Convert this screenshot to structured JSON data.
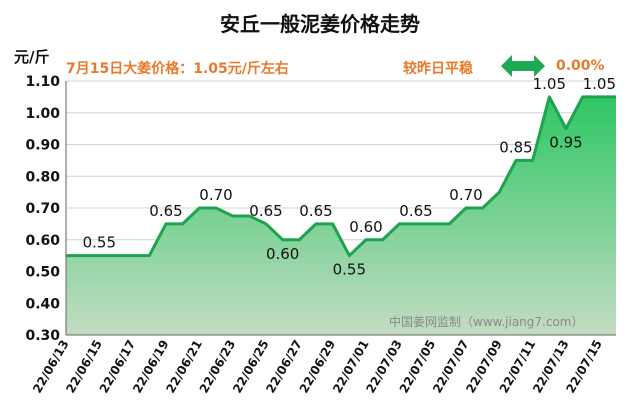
{
  "header": {
    "title": "安丘一般泥姜价格走势",
    "unit": "元/斤",
    "price_note": "7月15日大姜价格：1.05元/斤左右",
    "compare_label": "较昨日平稳",
    "compare_value": "0.00%"
  },
  "watermark": "中国姜网监制（www.jiang7.com）",
  "colors": {
    "line": "#1ea34f",
    "fill_top": "#2fc764",
    "fill_bottom": "#c3dcc3",
    "grid": "#d4d4d4",
    "accent": "#e97a2b",
    "arrow": "#1eaa52"
  },
  "chart_data": {
    "type": "area",
    "title": "安丘一般泥姜价格走势",
    "ylabel": "元/斤",
    "ylim": [
      0.3,
      1.1
    ],
    "y_ticks": [
      "0.30",
      "0.40",
      "0.50",
      "0.60",
      "0.70",
      "0.80",
      "0.90",
      "1.00",
      "1.10"
    ],
    "x_tick_labels": [
      "22/06/13",
      "22/06/15",
      "22/06/17",
      "22/06/19",
      "22/06/21",
      "22/06/23",
      "22/06/25",
      "22/06/27",
      "22/06/29",
      "22/07/01",
      "22/07/03",
      "22/07/05",
      "22/07/07",
      "22/07/09",
      "22/07/11",
      "22/07/13",
      "22/07/15"
    ],
    "series": [
      {
        "name": "一般泥姜",
        "values": [
          0.55,
          0.55,
          0.55,
          0.55,
          0.55,
          0.55,
          0.65,
          0.65,
          0.7,
          0.7,
          0.675,
          0.675,
          0.65,
          0.6,
          0.6,
          0.65,
          0.65,
          0.55,
          0.6,
          0.6,
          0.65,
          0.65,
          0.65,
          0.65,
          0.7,
          0.7,
          0.75,
          0.85,
          0.85,
          1.05,
          0.95,
          1.05,
          1.05,
          1.05
        ]
      }
    ],
    "data_labels": [
      {
        "index": 2,
        "text": "0.55"
      },
      {
        "index": 6,
        "text": "0.65"
      },
      {
        "index": 9,
        "text": "0.70"
      },
      {
        "index": 12,
        "text": "0.65"
      },
      {
        "index": 13,
        "text": "0.60"
      },
      {
        "index": 15,
        "text": "0.65"
      },
      {
        "index": 17,
        "text": "0.55"
      },
      {
        "index": 18,
        "text": "0.60"
      },
      {
        "index": 21,
        "text": "0.65"
      },
      {
        "index": 24,
        "text": "0.70"
      },
      {
        "index": 27,
        "text": "0.85"
      },
      {
        "index": 29,
        "text": "1.05"
      },
      {
        "index": 30,
        "text": "0.95"
      },
      {
        "index": 32,
        "text": "1.05"
      }
    ]
  }
}
